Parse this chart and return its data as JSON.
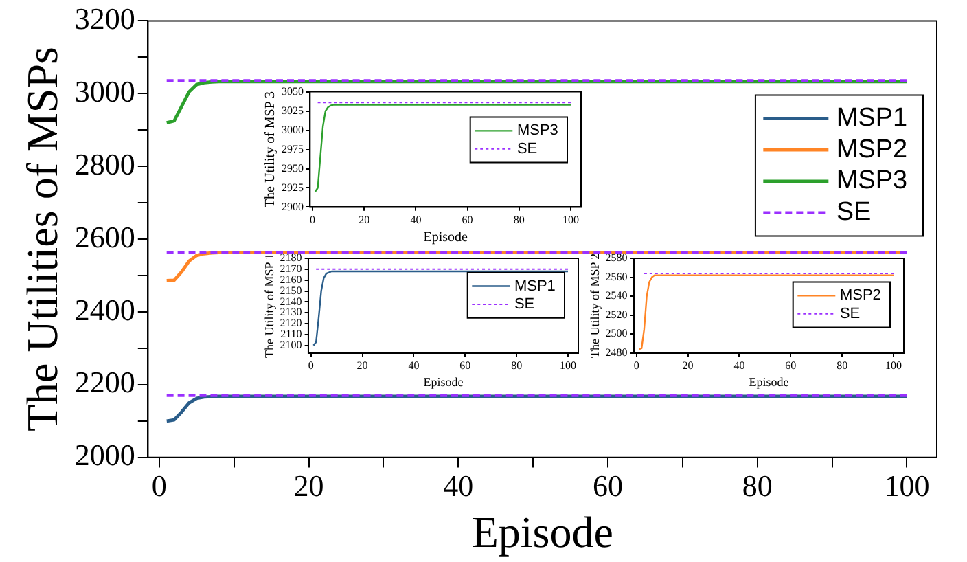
{
  "chart_data": [
    {
      "type": "line",
      "xlabel": "Episode",
      "ylabel": "The Utilities of MSPs",
      "x": [
        1,
        2,
        3,
        4,
        5,
        6,
        7,
        8,
        10,
        100
      ],
      "xlim": [
        -1.5,
        104
      ],
      "xticks": [
        0,
        {
          "value": 10,
          "label": null
        },
        20,
        {
          "value": 30,
          "label": null
        },
        40,
        {
          "value": 50,
          "label": null
        },
        60,
        {
          "value": 70,
          "label": null
        },
        80,
        {
          "value": 90,
          "label": null
        },
        100
      ],
      "ylim": [
        2000,
        3200
      ],
      "yticks": [
        2000,
        {
          "value": 2100,
          "label": null
        },
        2200,
        {
          "value": 2300,
          "label": null
        },
        2400,
        {
          "value": 2500,
          "label": null
        },
        2600,
        {
          "value": 2700,
          "label": null
        },
        2800,
        {
          "value": 2900,
          "label": null
        },
        3000,
        {
          "value": 3100,
          "label": null
        },
        3200
      ],
      "legend": "top right",
      "marker": "none",
      "series": [
        {
          "name": "MSP1",
          "color": "#2a5d8a",
          "line_style": "solid",
          "values": [
            2100,
            2103,
            2125,
            2150,
            2162,
            2166,
            2167,
            2168,
            2168,
            2168
          ]
        },
        {
          "name": "MSP2",
          "color": "#ff8526",
          "line_style": "solid",
          "values": [
            2486,
            2487,
            2510,
            2540,
            2555,
            2560,
            2562,
            2563,
            2563,
            2563
          ]
        },
        {
          "name": "MSP3",
          "color": "#2ca02c",
          "line_style": "solid",
          "values": [
            2920,
            2925,
            2965,
            3005,
            3025,
            3030,
            3032,
            3033,
            3033,
            3033
          ]
        },
        {
          "name": "SE",
          "color": "#9b30ff",
          "line_style": "dashed",
          "x": [
            1,
            100
          ],
          "values": [
            2170,
            2170
          ]
        },
        {
          "color": "#9b30ff",
          "line_style": "dashed",
          "x": [
            1,
            100
          ],
          "values": [
            2564,
            2564
          ]
        },
        {
          "color": "#9b30ff",
          "line_style": "dashed",
          "x": [
            1,
            100
          ],
          "values": [
            3036,
            3036
          ]
        }
      ]
    },
    {
      "type": "line",
      "xlabel": "Episode",
      "ylabel": "The Utility of MSP 3",
      "x": [
        1,
        2,
        3,
        4,
        5,
        6,
        7,
        8,
        10,
        100
      ],
      "xlim": [
        -1,
        104
      ],
      "xticks": [
        0,
        20,
        40,
        60,
        80,
        100
      ],
      "ylim": [
        2900,
        3050
      ],
      "yticks": [
        2900,
        2925,
        2950,
        2975,
        3000,
        3025,
        3050
      ],
      "legend": "right",
      "marker": "none",
      "series": [
        {
          "name": "MSP3",
          "color": "#2ca02c",
          "line_style": "solid",
          "values": [
            2920,
            2925,
            2965,
            3005,
            3025,
            3030,
            3032,
            3033,
            3033,
            3033
          ]
        },
        {
          "name": "SE",
          "color": "#9b30ff",
          "line_style": "dotted",
          "x": [
            2,
            100
          ],
          "values": [
            3036,
            3036
          ]
        }
      ]
    },
    {
      "type": "line",
      "xlabel": "Episode",
      "ylabel": "The Utility of MSP 1",
      "x": [
        1,
        2,
        3,
        4,
        5,
        6,
        7,
        8,
        10,
        100
      ],
      "xlim": [
        -1,
        104
      ],
      "xticks": [
        0,
        20,
        40,
        60,
        80,
        100
      ],
      "ylim": [
        2093,
        2180
      ],
      "yticks": [
        2100,
        2110,
        2120,
        2130,
        2140,
        2150,
        2160,
        2170,
        2180
      ],
      "legend": "right",
      "marker": "none",
      "series": [
        {
          "name": "MSP1",
          "color": "#2a5d8a",
          "line_style": "solid",
          "values": [
            2100,
            2103,
            2125,
            2150,
            2162,
            2166,
            2167,
            2168,
            2168,
            2168
          ]
        },
        {
          "name": "SE",
          "color": "#9b30ff",
          "line_style": "dotted",
          "x": [
            2,
            100
          ],
          "values": [
            2170,
            2170
          ]
        }
      ]
    },
    {
      "type": "line",
      "xlabel": "Episode",
      "ylabel": "The Utility of MSP 2",
      "x": [
        1,
        2,
        3,
        4,
        5,
        6,
        7,
        8,
        10,
        100
      ],
      "xlim": [
        -1,
        104
      ],
      "xticks": [
        0,
        20,
        40,
        60,
        80,
        100
      ],
      "ylim": [
        2480,
        2580
      ],
      "yticks": [
        2480,
        2500,
        2520,
        2540,
        2560,
        2580
      ],
      "legend": "right",
      "marker": "none",
      "series": [
        {
          "name": "MSP2",
          "color": "#ff8526",
          "line_style": "solid",
          "values": [
            2484,
            2485,
            2505,
            2540,
            2555,
            2560,
            2562,
            2562,
            2562,
            2562
          ]
        },
        {
          "name": "SE",
          "color": "#9b30ff",
          "line_style": "dotted",
          "x": [
            3,
            100
          ],
          "values": [
            2564,
            2564
          ]
        }
      ]
    }
  ]
}
